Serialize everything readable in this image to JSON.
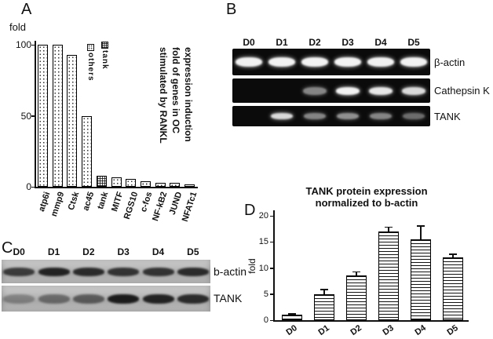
{
  "panels": {
    "a": {
      "label": "A",
      "title_lines": [
        "expression induction",
        "fold of genes in OC",
        "stimulated by RANKL"
      ]
    },
    "b": {
      "label": "B",
      "lanes": [
        "D0",
        "D1",
        "D2",
        "D3",
        "D4",
        "D5"
      ],
      "rows": [
        {
          "label": "β-actin",
          "bands": [
            0.95,
            0.95,
            0.95,
            0.95,
            0.95,
            0.95
          ]
        },
        {
          "label": "Cathepsin K",
          "bands": [
            0,
            0,
            0.5,
            0.95,
            0.9,
            0.85
          ]
        },
        {
          "label": "TANK",
          "bands": [
            0,
            0.85,
            0.5,
            0.55,
            0.5,
            0.4
          ]
        }
      ]
    },
    "c": {
      "label": "C",
      "lanes": [
        "D0",
        "D1",
        "D2",
        "D3",
        "D4",
        "D5"
      ],
      "rows": [
        {
          "label": "b-actin",
          "bands": [
            0.75,
            0.9,
            0.85,
            0.8,
            0.8,
            0.85
          ]
        },
        {
          "label": "TANK",
          "bands": [
            0.3,
            0.45,
            0.55,
            0.95,
            0.9,
            0.85
          ]
        }
      ]
    },
    "d": {
      "label": "D",
      "title_lines": [
        "TANK protein expression",
        "normalized to b-actin"
      ]
    }
  },
  "chart_data": [
    {
      "id": "panel-a",
      "type": "bar",
      "title": "expression induction fold of genes in OC stimulated by RANKL",
      "xlabel": "",
      "ylabel": "fold",
      "ylim": [
        0,
        105
      ],
      "yticks": [
        0,
        50,
        100
      ],
      "categories": [
        "atp6i",
        "mmp9",
        "Ctsk",
        "ac45",
        "tank",
        "MITF",
        "RGS10",
        "c-fos",
        "NF-kB2",
        "JUND",
        "NFATc1"
      ],
      "values": [
        100,
        100,
        93,
        50,
        8,
        6.5,
        5.5,
        4,
        3,
        2.5,
        1.5
      ],
      "legend": [
        "tank",
        "others"
      ],
      "legend_position": "inside-left",
      "grid": false
    },
    {
      "id": "panel-d",
      "type": "bar",
      "title": "TANK protein expression normalized to b-actin",
      "xlabel": "",
      "ylabel": "fold",
      "ylim": [
        0,
        20
      ],
      "yticks": [
        0,
        5,
        10,
        15,
        20
      ],
      "categories": [
        "D0",
        "D1",
        "D2",
        "D3",
        "D4",
        "D5"
      ],
      "values": [
        1,
        5,
        8.5,
        17,
        15.5,
        12
      ],
      "errors": [
        0.2,
        0.8,
        0.7,
        0.8,
        2.5,
        0.6
      ],
      "grid": false
    }
  ]
}
